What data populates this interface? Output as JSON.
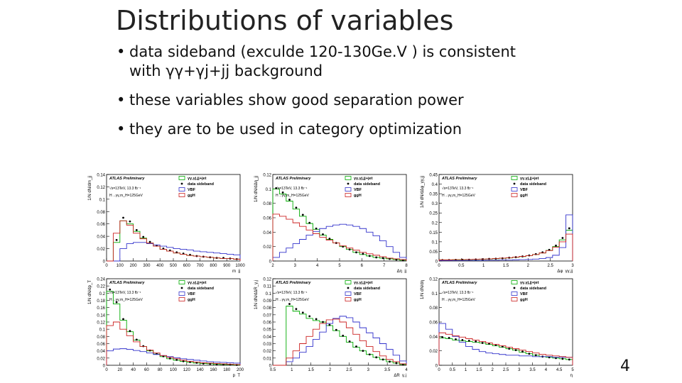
{
  "slide": {
    "title": "Distributions of variables",
    "bullets": [
      {
        "line1": "data sideband (exculde 120-130Ge.V ) is consistent",
        "line2": "with γγ+γj+jj background"
      },
      {
        "line1": "these variables show good separation power",
        "line2": ""
      },
      {
        "line1": "they are to be used in category optimization",
        "line2": ""
      }
    ],
    "page_number": "4"
  },
  "legend": {
    "atlas": "ATLAS Preliminary",
    "energy": "√s=13TeV, 13.3 fb⁻¹",
    "process": "H→γγ,m_H=125GeV",
    "entries": [
      "γγ,γj,jj+jet",
      "data sideband",
      "VBF",
      "ggH"
    ]
  },
  "colors": {
    "bkg": "#00aa00",
    "data": "#000000",
    "vbf": "#3333cc",
    "ggh": "#cc2222"
  },
  "chart_data": [
    {
      "type": "line",
      "xlabel": "m_jj",
      "ylabel": "1/N dN/dm_jj",
      "xticks": [
        "0",
        "100",
        "200",
        "300",
        "400",
        "500",
        "600",
        "700",
        "800",
        "900",
        "1000"
      ],
      "yticks": [
        "0",
        "0.02",
        "0.04",
        "0.06",
        "0.08",
        "0.1",
        "0.12",
        "0.14"
      ],
      "ylim": [
        0,
        0.14
      ],
      "series": [
        {
          "name": "γγ,γj,jj+jet",
          "values": [
            0.0,
            0.03,
            0.065,
            0.06,
            0.048,
            0.037,
            0.029,
            0.024,
            0.019,
            0.016,
            0.013,
            0.011,
            0.009,
            0.008,
            0.007,
            0.006,
            0.005,
            0.004,
            0.004,
            0.003
          ]
        },
        {
          "name": "data sideband",
          "values": [
            0.0,
            0.034,
            0.07,
            0.064,
            0.05,
            0.039,
            0.031,
            0.025,
            0.02,
            0.017,
            0.014,
            0.012,
            0.01,
            0.008,
            0.007,
            0.006,
            0.005,
            0.005,
            0.004,
            0.003
          ]
        },
        {
          "name": "VBF",
          "values": [
            0.0,
            0.0,
            0.02,
            0.028,
            0.03,
            0.03,
            0.028,
            0.026,
            0.024,
            0.022,
            0.02,
            0.019,
            0.018,
            0.016,
            0.015,
            0.014,
            0.013,
            0.012,
            0.011,
            0.01
          ]
        },
        {
          "name": "ggH",
          "values": [
            0.0,
            0.045,
            0.065,
            0.058,
            0.045,
            0.036,
            0.029,
            0.024,
            0.019,
            0.016,
            0.013,
            0.011,
            0.009,
            0.008,
            0.007,
            0.006,
            0.005,
            0.004,
            0.004,
            0.003
          ]
        }
      ]
    },
    {
      "type": "line",
      "xlabel": "Δη_jj",
      "ylabel": "1/N dN/dΔη_jj",
      "xticks": [
        "2",
        "3",
        "4",
        "5",
        "6",
        "7",
        "8"
      ],
      "yticks": [
        "0",
        "0.02",
        "0.04",
        "0.06",
        "0.08",
        "0.1",
        "0.12"
      ],
      "ylim": [
        0,
        0.12
      ],
      "series": [
        {
          "name": "γγ,γj,jj+jet",
          "values": [
            0.1,
            0.093,
            0.083,
            0.072,
            0.062,
            0.052,
            0.044,
            0.036,
            0.03,
            0.025,
            0.02,
            0.016,
            0.012,
            0.009,
            0.007,
            0.005,
            0.004,
            0.003,
            0.002,
            0.001
          ]
        },
        {
          "name": "data sideband",
          "values": [
            0.101,
            0.095,
            0.085,
            0.074,
            0.064,
            0.053,
            0.045,
            0.037,
            0.031,
            0.025,
            0.02,
            0.016,
            0.012,
            0.01,
            0.007,
            0.005,
            0.004,
            0.003,
            0.002,
            0.001
          ]
        },
        {
          "name": "VBF",
          "values": [
            0.005,
            0.012,
            0.018,
            0.024,
            0.03,
            0.036,
            0.041,
            0.045,
            0.048,
            0.05,
            0.051,
            0.05,
            0.048,
            0.045,
            0.04,
            0.035,
            0.028,
            0.02,
            0.012,
            0.005
          ]
        },
        {
          "name": "ggH",
          "values": [
            0.065,
            0.062,
            0.058,
            0.053,
            0.048,
            0.043,
            0.038,
            0.033,
            0.029,
            0.025,
            0.021,
            0.018,
            0.015,
            0.012,
            0.01,
            0.008,
            0.006,
            0.004,
            0.003,
            0.002
          ]
        }
      ]
    },
    {
      "type": "line",
      "xlabel": "Δφ_γγ,jj",
      "ylabel": "1/N dN/dΔφ_γγ,jj",
      "xticks": [
        "0",
        "0.5",
        "1",
        "1.5",
        "2",
        "2.5",
        "3"
      ],
      "yticks": [
        "0",
        "0.05",
        "0.1",
        "0.15",
        "0.2",
        "0.25",
        "0.3",
        "0.35",
        "0.4",
        "0.45"
      ],
      "ylim": [
        0,
        0.45
      ],
      "series": [
        {
          "name": "γγ,γj,jj+jet",
          "values": [
            0.005,
            0.005,
            0.006,
            0.006,
            0.007,
            0.008,
            0.009,
            0.01,
            0.012,
            0.014,
            0.016,
            0.019,
            0.023,
            0.028,
            0.034,
            0.042,
            0.055,
            0.075,
            0.11,
            0.16
          ]
        },
        {
          "name": "data sideband",
          "values": [
            0.005,
            0.005,
            0.006,
            0.007,
            0.007,
            0.008,
            0.009,
            0.011,
            0.012,
            0.014,
            0.017,
            0.02,
            0.024,
            0.029,
            0.036,
            0.045,
            0.058,
            0.08,
            0.12,
            0.17
          ]
        },
        {
          "name": "VBF",
          "values": [
            0.002,
            0.002,
            0.002,
            0.002,
            0.003,
            0.003,
            0.003,
            0.004,
            0.004,
            0.005,
            0.005,
            0.006,
            0.007,
            0.008,
            0.01,
            0.013,
            0.018,
            0.03,
            0.07,
            0.24
          ]
        },
        {
          "name": "ggH",
          "values": [
            0.006,
            0.006,
            0.007,
            0.007,
            0.008,
            0.009,
            0.01,
            0.011,
            0.013,
            0.015,
            0.017,
            0.02,
            0.024,
            0.028,
            0.034,
            0.042,
            0.054,
            0.072,
            0.1,
            0.14
          ]
        }
      ]
    },
    {
      "type": "line",
      "xlabel": "p_T",
      "ylabel": "1/N dN/dp_T",
      "xticks": [
        "0",
        "20",
        "40",
        "60",
        "80",
        "100",
        "120",
        "140",
        "160",
        "180",
        "200"
      ],
      "yticks": [
        "0",
        "0.02",
        "0.04",
        "0.06",
        "0.08",
        "0.1",
        "0.12",
        "0.14",
        "0.16",
        "0.18",
        "0.2",
        "0.22",
        "0.24"
      ],
      "ylim": [
        0,
        0.24
      ],
      "series": [
        {
          "name": "γγ,γj,jj+jet",
          "values": [
            0.205,
            0.17,
            0.125,
            0.093,
            0.07,
            0.052,
            0.04,
            0.031,
            0.024,
            0.018,
            0.014,
            0.011,
            0.008,
            0.006,
            0.005,
            0.004,
            0.003,
            0.002,
            0.002,
            0.001
          ]
        },
        {
          "name": "data sideband",
          "values": [
            0.21,
            0.175,
            0.128,
            0.095,
            0.071,
            0.053,
            0.041,
            0.032,
            0.025,
            0.019,
            0.015,
            0.011,
            0.009,
            0.007,
            0.005,
            0.004,
            0.003,
            0.002,
            0.002,
            0.001
          ]
        },
        {
          "name": "VBF",
          "values": [
            0.04,
            0.045,
            0.046,
            0.044,
            0.041,
            0.038,
            0.034,
            0.03,
            0.027,
            0.024,
            0.021,
            0.018,
            0.016,
            0.014,
            0.012,
            0.01,
            0.009,
            0.008,
            0.007,
            0.006
          ]
        },
        {
          "name": "ggH",
          "values": [
            0.11,
            0.12,
            0.1,
            0.082,
            0.065,
            0.052,
            0.042,
            0.034,
            0.027,
            0.022,
            0.018,
            0.014,
            0.011,
            0.009,
            0.007,
            0.006,
            0.005,
            0.004,
            0.003,
            0.002
          ]
        }
      ]
    },
    {
      "type": "line",
      "xlabel": "ΔR_γ,j",
      "ylabel": "1/N dN/dΔR_γ,j",
      "xticks": [
        "0.5",
        "1",
        "1.5",
        "2",
        "2.5",
        "3",
        "3.5",
        "4"
      ],
      "yticks": [
        "0",
        "0.01",
        "0.02",
        "0.03",
        "0.04",
        "0.05",
        "0.06",
        "0.07",
        "0.08",
        "0.09",
        "0.1",
        "0.11",
        "0.12"
      ],
      "ylim": [
        0,
        0.12
      ],
      "series": [
        {
          "name": "γγ,γj,jj+jet",
          "values": [
            0.0,
            0.0,
            0.082,
            0.075,
            0.071,
            0.065,
            0.062,
            0.06,
            0.055,
            0.048,
            0.04,
            0.032,
            0.025,
            0.02,
            0.015,
            0.011,
            0.008,
            0.005,
            0.003,
            0.001
          ]
        },
        {
          "name": "data sideband",
          "values": [
            0.0,
            0.0,
            0.085,
            0.078,
            0.073,
            0.068,
            0.064,
            0.06,
            0.056,
            0.049,
            0.041,
            0.033,
            0.026,
            0.02,
            0.015,
            0.011,
            0.008,
            0.005,
            0.003,
            0.001
          ]
        },
        {
          "name": "VBF",
          "values": [
            0.0,
            0.0,
            0.005,
            0.01,
            0.018,
            0.026,
            0.036,
            0.046,
            0.058,
            0.065,
            0.068,
            0.066,
            0.06,
            0.052,
            0.045,
            0.038,
            0.03,
            0.022,
            0.014,
            0.006
          ]
        },
        {
          "name": "ggH",
          "values": [
            0.0,
            0.0,
            0.01,
            0.02,
            0.03,
            0.04,
            0.05,
            0.058,
            0.063,
            0.064,
            0.06,
            0.052,
            0.043,
            0.034,
            0.026,
            0.019,
            0.013,
            0.008,
            0.005,
            0.002
          ]
        }
      ]
    },
    {
      "type": "line",
      "xlabel": "η",
      "ylabel": "1/N dN/dη",
      "xticks": [
        "0",
        "0.5",
        "1",
        "1.5",
        "2",
        "2.5",
        "3",
        "3.5",
        "4",
        "4.5",
        "5"
      ],
      "yticks": [
        "0",
        "0.02",
        "0.04",
        "0.06",
        "0.08",
        "0.1",
        "0.12"
      ],
      "ylim": [
        0,
        0.12
      ],
      "series": [
        {
          "name": "γγ,γj,jj+jet",
          "values": [
            0.038,
            0.037,
            0.035,
            0.034,
            0.033,
            0.032,
            0.031,
            0.029,
            0.027,
            0.025,
            0.023,
            0.021,
            0.018,
            0.016,
            0.014,
            0.012,
            0.011,
            0.01,
            0.009,
            0.008
          ]
        },
        {
          "name": "data sideband",
          "values": [
            0.039,
            0.038,
            0.036,
            0.035,
            0.034,
            0.033,
            0.031,
            0.03,
            0.028,
            0.026,
            0.023,
            0.021,
            0.019,
            0.016,
            0.014,
            0.012,
            0.011,
            0.01,
            0.009,
            0.008
          ]
        },
        {
          "name": "VBF",
          "values": [
            0.058,
            0.05,
            0.04,
            0.032,
            0.026,
            0.022,
            0.019,
            0.017,
            0.016,
            0.015,
            0.014,
            0.014,
            0.013,
            0.013,
            0.012,
            0.012,
            0.012,
            0.011,
            0.011,
            0.011
          ]
        },
        {
          "name": "ggH",
          "values": [
            0.045,
            0.043,
            0.041,
            0.039,
            0.037,
            0.035,
            0.033,
            0.031,
            0.029,
            0.027,
            0.025,
            0.023,
            0.021,
            0.019,
            0.017,
            0.015,
            0.014,
            0.013,
            0.012,
            0.011
          ]
        }
      ]
    }
  ]
}
